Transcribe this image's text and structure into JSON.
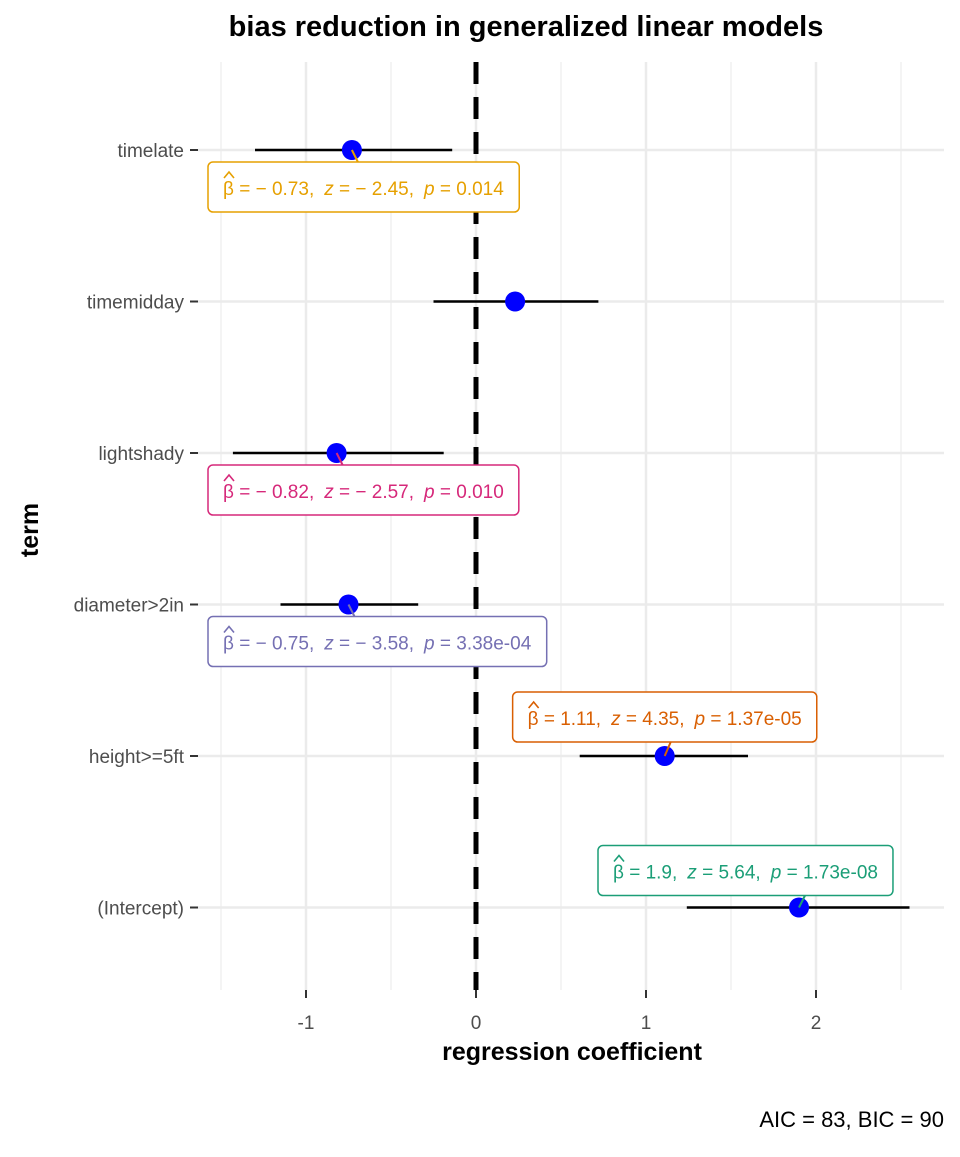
{
  "chart_data": {
    "type": "scatter",
    "title": "bias reduction in generalized linear models",
    "xlabel": "regression coefficient",
    "ylabel": "term",
    "caption": "AIC = 83, BIC = 90",
    "xlim": [
      -1.5,
      2.75
    ],
    "x_ticks": [
      -1,
      0,
      1,
      2
    ],
    "x_tick_labels": [
      "-1",
      "0",
      "1",
      "2"
    ],
    "grid": true,
    "reference_line": 0,
    "point_color": "#0000ff",
    "terms": [
      {
        "term": "timelate",
        "estimate": -0.73,
        "conf_low": -1.3,
        "conf_high": -0.14,
        "label": {
          "beta": "− 0.73,",
          "z": "− 2.45,",
          "p": "0.014"
        },
        "label_color": "#e6a000",
        "label_side": "below"
      },
      {
        "term": "timemidday",
        "estimate": 0.23,
        "conf_low": -0.25,
        "conf_high": 0.72,
        "label": null
      },
      {
        "term": "lightshady",
        "estimate": -0.82,
        "conf_low": -1.43,
        "conf_high": -0.19,
        "label": {
          "beta": "− 0.82,",
          "z": "− 2.57,",
          "p": "0.010"
        },
        "label_color": "#d6287a",
        "label_side": "below"
      },
      {
        "term": "diameter>2in",
        "estimate": -0.75,
        "conf_low": -1.15,
        "conf_high": -0.34,
        "label": {
          "beta": "− 0.75,",
          "z": "− 3.58,",
          "p": "3.38e-04"
        },
        "label_color": "#7570b3",
        "label_side": "below"
      },
      {
        "term": "height>=5ft",
        "estimate": 1.11,
        "conf_low": 0.61,
        "conf_high": 1.6,
        "label": {
          "beta": "1.11,",
          "z": "4.35,",
          "p": "1.37e-05"
        },
        "label_color": "#d95f02",
        "label_side": "above"
      },
      {
        "term": "(Intercept)",
        "estimate": 1.9,
        "conf_low": 1.24,
        "conf_high": 2.55,
        "label": {
          "beta": "1.9,",
          "z": "5.64,",
          "p": "1.73e-08"
        },
        "label_color": "#1b9e77",
        "label_side": "above"
      }
    ]
  }
}
